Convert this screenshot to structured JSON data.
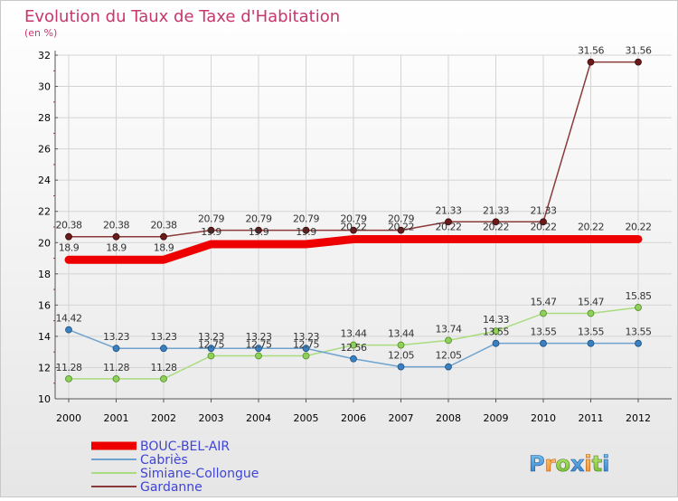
{
  "chart_data": {
    "type": "line",
    "title": "Evolution du Taux de Taxe d'Habitation",
    "subtitle": "(en %)",
    "xlabel": "",
    "ylabel": "",
    "x": [
      "2000",
      "2001",
      "2002",
      "2003",
      "2004",
      "2005",
      "2006",
      "2007",
      "2008",
      "2009",
      "2010",
      "2011",
      "2012"
    ],
    "ylim": [
      10,
      32
    ],
    "yticks": [
      "10",
      "12",
      "14",
      "16",
      "18",
      "20",
      "22",
      "24",
      "26",
      "28",
      "30",
      "32"
    ],
    "grid": true,
    "legend_position": "bottom-left",
    "series": [
      {
        "name": "BOUC-BEL-AIR",
        "color": "#ee0000",
        "values": [
          18.9,
          18.9,
          18.9,
          19.9,
          19.9,
          19.9,
          20.22,
          20.22,
          20.22,
          20.22,
          20.22,
          20.22,
          20.22
        ],
        "labels": [
          "18.9",
          "18.9",
          "18.9",
          "19.9",
          "19.9",
          "19.9",
          "20.22",
          "20.22",
          "20.22",
          "20.22",
          "20.22",
          "20.22",
          "20.22"
        ]
      },
      {
        "name": "Cabriès",
        "color": "#6fa3cf",
        "values": [
          14.42,
          13.23,
          13.23,
          13.23,
          13.23,
          13.23,
          12.56,
          12.05,
          12.05,
          13.55,
          13.55,
          13.55,
          13.55
        ],
        "labels": [
          "14.42",
          "13.23",
          "13.23",
          "13.23",
          "13.23",
          "13.23",
          "12.56",
          "12.05",
          "12.05",
          "13.55",
          "13.55",
          "13.55",
          "13.55"
        ]
      },
      {
        "name": "Simiane-Collongue",
        "color": "#a9dc7f",
        "values": [
          11.28,
          11.28,
          11.28,
          12.75,
          12.75,
          12.75,
          13.44,
          13.44,
          13.74,
          14.33,
          15.47,
          15.47,
          15.85
        ],
        "labels": [
          "11.28",
          "11.28",
          "11.28",
          "12.75",
          "12.75",
          "12.75",
          "13.44",
          "13.44",
          "13.74",
          "14.33",
          "15.47",
          "15.47",
          "15.85"
        ]
      },
      {
        "name": "Gardanne",
        "color": "#8b3a3a",
        "values": [
          20.38,
          20.38,
          20.38,
          20.79,
          20.79,
          20.79,
          20.79,
          20.79,
          21.33,
          21.33,
          21.33,
          31.56,
          31.56
        ],
        "labels": [
          "20.38",
          "20.38",
          "20.38",
          "20.79",
          "20.79",
          "20.79",
          "20.79",
          "20.79",
          "21.33",
          "21.33",
          "21.33",
          "31.56",
          "31.56"
        ]
      }
    ]
  },
  "watermark": {
    "text": "Proxiti"
  }
}
